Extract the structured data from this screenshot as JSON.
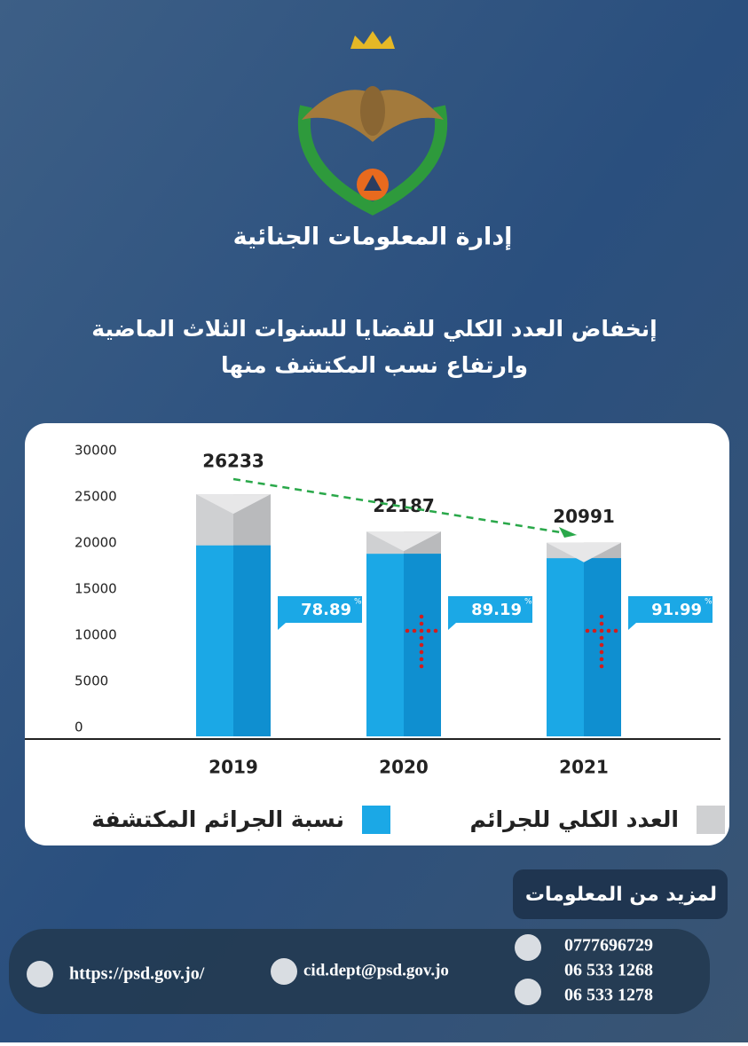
{
  "header": {
    "department": "إدارة المعلومات الجنائية",
    "title_line1": "إنخفاض العدد الكلي للقضايا للسنوات الثلاث الماضية",
    "title_line2": "وارتفاع نسب المكتشف منها"
  },
  "chart_data": {
    "type": "bar",
    "categories": [
      "2019",
      "2020",
      "2021"
    ],
    "series": [
      {
        "name": "العدد الكلي للجرائم",
        "color": "#cfd0d2",
        "values": [
          26233,
          22187,
          20991
        ]
      },
      {
        "name": "نسبة الجرائم المكتشفة",
        "color": "#1ba8e6",
        "unit": "%",
        "values": [
          78.89,
          89.19,
          91.99
        ]
      }
    ],
    "ylim": [
      0,
      30000
    ],
    "yticks": [
      0,
      5000,
      10000,
      15000,
      20000,
      25000,
      30000
    ]
  },
  "footer": {
    "more_info": "لمزيد من المعلومات",
    "mobile": "0777696729",
    "phone1": "06 533 1268",
    "phone2": "06 533 1278",
    "email": "cid.dept@psd.gov.jo",
    "website": "https://psd.gov.jo/"
  }
}
